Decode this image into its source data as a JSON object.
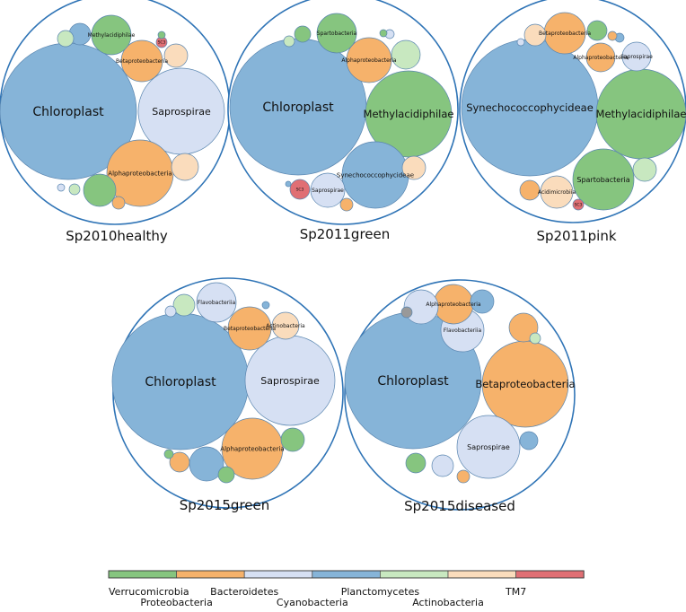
{
  "colors": {
    "Verrucomicrobia": "#86c57f",
    "Proteobacteria": "#f6b26b",
    "Bacteroidetes": "#d6e0f3",
    "Cyanobacteria": "#86b4d8",
    "Planctomycetes": "#c8e8c0",
    "Actinobacteria": "#fadcbc",
    "TM7": "#e06f74",
    "Other": "#999999",
    "outline": "#2f74b6"
  },
  "chart_data": {
    "type": "bubble",
    "legend": {
      "placement": "bottom",
      "entries": [
        "Verrucomicrobia",
        "Proteobacteria",
        "Bacteroidetes",
        "Cyanobacteria",
        "Planctomycetes",
        "Actinobacteria",
        "TM7"
      ]
    },
    "panels": [
      {
        "label": "Sp2010healthy",
        "bubbles": [
          {
            "label": "Chloroplast",
            "phylum": "Cyanobacteria",
            "size": 76
          },
          {
            "label": "Saprospirae",
            "phylum": "Bacteroidetes",
            "size": 48
          },
          {
            "label": "Alphaproteobacteria",
            "phylum": "Proteobacteria",
            "size": 37
          },
          {
            "label": "Betaproteobacteria",
            "phylum": "Proteobacteria",
            "size": 23
          },
          {
            "label": "Methylacidiphilae",
            "phylum": "Verrucomicrobia",
            "size": 22
          },
          {
            "label": "",
            "phylum": "Actinobacteria",
            "size": 15
          },
          {
            "label": "",
            "phylum": "Verrucomicrobia",
            "size": 18
          },
          {
            "label": "",
            "phylum": "Actinobacteria",
            "size": 13
          },
          {
            "label": "",
            "phylum": "Cyanobacteria",
            "size": 12
          },
          {
            "label": "SC3",
            "phylum": "TM7",
            "size": 6
          },
          {
            "label": "",
            "phylum": "Planctomycetes",
            "size": 9
          },
          {
            "label": "",
            "phylum": "Proteobacteria",
            "size": 7
          },
          {
            "label": "",
            "phylum": "Planctomycetes",
            "size": 6
          },
          {
            "label": "",
            "phylum": "Verrucomicrobia",
            "size": 4
          },
          {
            "label": "",
            "phylum": "Bacteroidetes",
            "size": 4
          }
        ]
      },
      {
        "label": "Sp2011green",
        "bubbles": [
          {
            "label": "Chloroplast",
            "phylum": "Cyanobacteria",
            "size": 76
          },
          {
            "label": "Methylacidiphilae",
            "phylum": "Verrucomicrobia",
            "size": 48
          },
          {
            "label": "Synechococcophycideae",
            "phylum": "Cyanobacteria",
            "size": 37
          },
          {
            "label": "Alphaproteobacteria",
            "phylum": "Proteobacteria",
            "size": 25
          },
          {
            "label": "Spartobacteria",
            "phylum": "Verrucomicrobia",
            "size": 22
          },
          {
            "label": "Saprospirae",
            "phylum": "Bacteroidetes",
            "size": 19
          },
          {
            "label": "",
            "phylum": "Planctomycetes",
            "size": 16
          },
          {
            "label": "",
            "phylum": "Actinobacteria",
            "size": 13
          },
          {
            "label": "SC3",
            "phylum": "TM7",
            "size": 11
          },
          {
            "label": "",
            "phylum": "Verrucomicrobia",
            "size": 9
          },
          {
            "label": "",
            "phylum": "Proteobacteria",
            "size": 7
          },
          {
            "label": "",
            "phylum": "Planctomycetes",
            "size": 6
          },
          {
            "label": "",
            "phylum": "Bacteroidetes",
            "size": 5
          },
          {
            "label": "",
            "phylum": "Verrucomicrobia",
            "size": 4
          },
          {
            "label": "",
            "phylum": "Cyanobacteria",
            "size": 3
          }
        ]
      },
      {
        "label": "Sp2011pink",
        "bubbles": [
          {
            "label": "Synechococcophycideae",
            "phylum": "Cyanobacteria",
            "size": 76
          },
          {
            "label": "Methylacidiphilae",
            "phylum": "Verrucomicrobia",
            "size": 50
          },
          {
            "label": "Spartobacteria",
            "phylum": "Verrucomicrobia",
            "size": 34
          },
          {
            "label": "Betaproteobacteria",
            "phylum": "Proteobacteria",
            "size": 23
          },
          {
            "label": "Acidimicrobiia",
            "phylum": "Actinobacteria",
            "size": 18
          },
          {
            "label": "Alphaproteobacteria",
            "phylum": "Proteobacteria",
            "size": 16
          },
          {
            "label": "Saprospirae",
            "phylum": "Bacteroidetes",
            "size": 16
          },
          {
            "label": "",
            "phylum": "Actinobacteria",
            "size": 12
          },
          {
            "label": "",
            "phylum": "Planctomycetes",
            "size": 13
          },
          {
            "label": "",
            "phylum": "Verrucomicrobia",
            "size": 11
          },
          {
            "label": "",
            "phylum": "Proteobacteria",
            "size": 11
          },
          {
            "label": "SC3",
            "phylum": "TM7",
            "size": 6
          },
          {
            "label": "",
            "phylum": "Cyanobacteria",
            "size": 5
          },
          {
            "label": "",
            "phylum": "Proteobacteria",
            "size": 5
          },
          {
            "label": "",
            "phylum": "Bacteroidetes",
            "size": 4
          }
        ]
      },
      {
        "label": "Sp2015green",
        "bubbles": [
          {
            "label": "Chloroplast",
            "phylum": "Cyanobacteria",
            "size": 76
          },
          {
            "label": "Saprospirae",
            "phylum": "Bacteroidetes",
            "size": 50
          },
          {
            "label": "Alphaproteobacteria",
            "phylum": "Proteobacteria",
            "size": 34
          },
          {
            "label": "Betaproteobacteria",
            "phylum": "Proteobacteria",
            "size": 24
          },
          {
            "label": "Flavobacteriia",
            "phylum": "Bacteroidetes",
            "size": 22
          },
          {
            "label": "",
            "phylum": "Cyanobacteria",
            "size": 19
          },
          {
            "label": "Actinobacteria",
            "phylum": "Actinobacteria",
            "size": 15
          },
          {
            "label": "",
            "phylum": "Verrucomicrobia",
            "size": 13
          },
          {
            "label": "",
            "phylum": "Planctomycetes",
            "size": 12
          },
          {
            "label": "",
            "phylum": "Proteobacteria",
            "size": 11
          },
          {
            "label": "",
            "phylum": "Verrucomicrobia",
            "size": 9
          },
          {
            "label": "",
            "phylum": "Bacteroidetes",
            "size": 6
          },
          {
            "label": "",
            "phylum": "Verrucomicrobia",
            "size": 5
          },
          {
            "label": "",
            "phylum": "Cyanobacteria",
            "size": 4
          }
        ]
      },
      {
        "label": "Sp2015diseased",
        "bubbles": [
          {
            "label": "Chloroplast",
            "phylum": "Cyanobacteria",
            "size": 76
          },
          {
            "label": "Betaproteobacteria",
            "phylum": "Proteobacteria",
            "size": 48
          },
          {
            "label": "Saprospirae",
            "phylum": "Bacteroidetes",
            "size": 35
          },
          {
            "label": "Flavobacteriia",
            "phylum": "Bacteroidetes",
            "size": 24
          },
          {
            "label": "Alphaproteobacteria",
            "phylum": "Proteobacteria",
            "size": 22
          },
          {
            "label": "",
            "phylum": "Bacteroidetes",
            "size": 19
          },
          {
            "label": "",
            "phylum": "Proteobacteria",
            "size": 16
          },
          {
            "label": "",
            "phylum": "Cyanobacteria",
            "size": 13
          },
          {
            "label": "",
            "phylum": "Verrucomicrobia",
            "size": 11
          },
          {
            "label": "",
            "phylum": "Bacteroidetes",
            "size": 12
          },
          {
            "label": "",
            "phylum": "Cyanobacteria",
            "size": 10
          },
          {
            "label": "",
            "phylum": "Other",
            "size": 6
          },
          {
            "label": "",
            "phylum": "Planctomycetes",
            "size": 6
          },
          {
            "label": "",
            "phylum": "Proteobacteria",
            "size": 7
          }
        ]
      }
    ]
  }
}
